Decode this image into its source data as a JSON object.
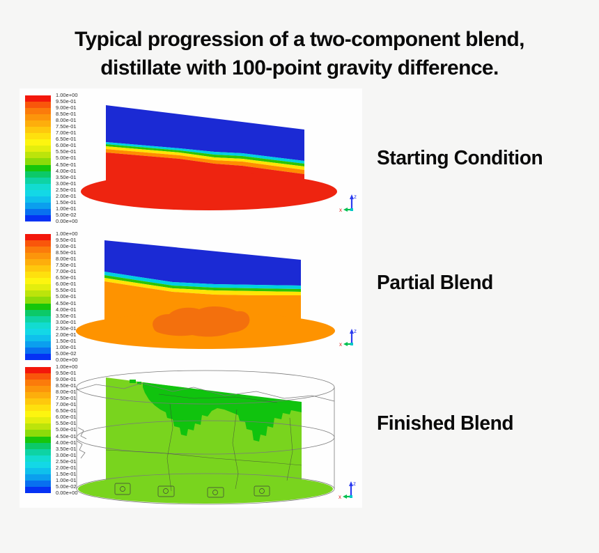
{
  "page": {
    "background_color": "#f6f6f5",
    "panel_background": "#fefefe",
    "title_line1": "Typical progression of a two-component blend,",
    "title_line2": "distillate with 100-point gravity difference."
  },
  "legend": {
    "labels": [
      "1.00e+00",
      "9.50e-01",
      "9.00e-01",
      "8.50e-01",
      "8.00e-01",
      "7.50e-01",
      "7.00e-01",
      "6.50e-01",
      "6.00e-01",
      "5.50e-01",
      "5.00e-01",
      "4.50e-01",
      "4.00e-01",
      "3.50e-01",
      "3.00e-01",
      "2.50e-01",
      "2.00e-01",
      "1.50e-01",
      "1.00e-01",
      "5.00e-02",
      "0.00e+00"
    ],
    "colors": [
      "#f3170b",
      "#f9560b",
      "#fb7b0b",
      "#fc950b",
      "#fdae0c",
      "#fec80d",
      "#fee00e",
      "#fdf50f",
      "#e3ee0d",
      "#bce40b",
      "#8cdb09",
      "#16c60b",
      "#0cc968",
      "#0ed3a4",
      "#12dcd0",
      "#13d8e6",
      "#0fc0ec",
      "#0b9fee",
      "#0870f0",
      "#0532f4"
    ]
  },
  "panels": [
    {
      "id": "starting-condition",
      "label": "Starting Condition"
    },
    {
      "id": "partial-blend",
      "label": "Partial Blend"
    },
    {
      "id": "finished-blend",
      "label": "Finished Blend"
    }
  ],
  "axis_triad": {
    "x_label": "x",
    "z_label": "z"
  },
  "colors": {
    "blue": "#1b2ad4",
    "red": "#ee2410",
    "band_cyan": "#00cfe2",
    "band_green": "#2cc405",
    "band_yellow": "#ffe405",
    "band_orange": "#ff8d00",
    "orange": "#fe9300",
    "orange_dark": "#f3700d",
    "green_light": "#79d41e",
    "green_dark": "#10c30e",
    "wireframe": "#7a7a7a",
    "mesh_line": "#3c3c3c",
    "triad_blue": "#2b3cf0",
    "triad_green": "#00c050",
    "triad_red": "#e02020",
    "triad_cyan": "#00c8c8"
  }
}
